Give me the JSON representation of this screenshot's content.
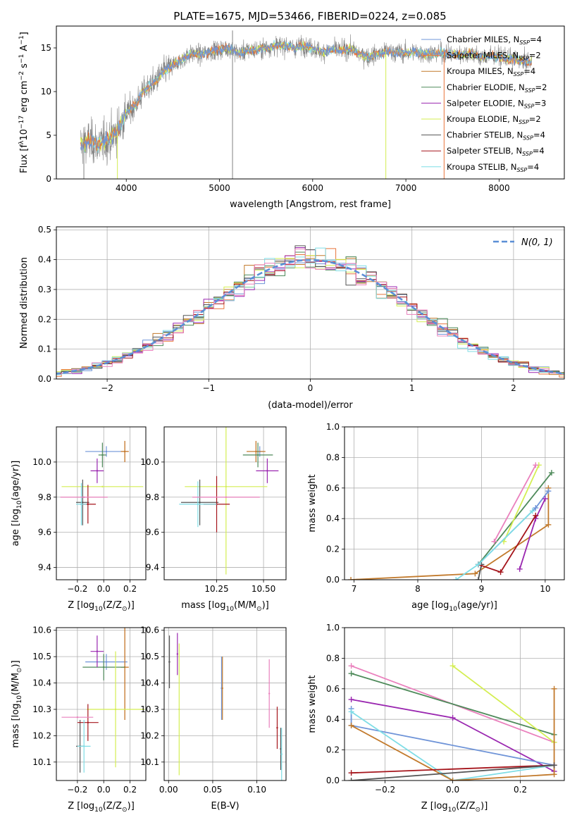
{
  "figure_title": "PLATE=1675, MJD=53466, FIBERID=0224, z=0.085",
  "colors": {
    "Chabrier MILES": "#6f94d8",
    "Salpeter MILES": "#e8743b",
    "Kroupa MILES": "#c27a2c",
    "Chabrier ELODIE": "#4e8a5a",
    "Salpeter ELODIE": "#9a27b0",
    "Kroupa ELODIE": "#d4ee52",
    "Chabrier STELIB": "#555555",
    "Salpeter STELIB": "#a5151c",
    "Kroupa STELIB": "#7fdde6",
    "Normal": "#5b8fd6",
    "Data": "#808080",
    "Extra": "#ea80bd"
  },
  "chart_data": [
    {
      "id": "spectrum",
      "type": "line",
      "title": "PLATE=1675, MJD=53466, FIBERID=0224, z=0.085",
      "xlabel": "wavelength [Angstrom, rest frame]",
      "ylabel_parts": [
        "Flux [f",
        "λ",
        "10",
        "−17",
        " erg cm",
        "−2",
        " s",
        "−1",
        " A",
        "−1",
        "]"
      ],
      "xlim": [
        3250,
        8700
      ],
      "ylim": [
        0,
        17.5
      ],
      "xticks": [
        4000,
        5000,
        6000,
        7000,
        8000
      ],
      "yticks": [
        0,
        5,
        10,
        15
      ],
      "grid": false,
      "legend_position": "right",
      "legend": [
        {
          "base": "Chabrier MILES, N",
          "sub": "SSP",
          "tail": "=4",
          "color": "Chabrier MILES"
        },
        {
          "base": "Salpeter MILES, N",
          "sub": "SSP",
          "tail": "=2",
          "color": "Salpeter MILES"
        },
        {
          "base": "Kroupa MILES, N",
          "sub": "SSP",
          "tail": "=4",
          "color": "Kroupa MILES"
        },
        {
          "base": "Chabrier ELODIE, N",
          "sub": "SSP",
          "tail": "=2",
          "color": "Chabrier ELODIE"
        },
        {
          "base": "Salpeter ELODIE, N",
          "sub": "SSP",
          "tail": "=3",
          "color": "Salpeter ELODIE"
        },
        {
          "base": "Kroupa ELODIE, N",
          "sub": "SSP",
          "tail": "=2",
          "color": "Kroupa ELODIE"
        },
        {
          "base": "Chabrier STELIB, N",
          "sub": "SSP",
          "tail": "=4",
          "color": "Chabrier STELIB"
        },
        {
          "base": "Salpeter STELIB, N",
          "sub": "SSP",
          "tail": "=4",
          "color": "Salpeter STELIB"
        },
        {
          "base": "Kroupa STELIB, N",
          "sub": "SSP",
          "tail": "=4",
          "color": "Kroupa STELIB"
        }
      ],
      "continuum": [
        [
          3510,
          4.0
        ],
        [
          3600,
          4.3
        ],
        [
          3700,
          4.0
        ],
        [
          3800,
          4.4
        ],
        [
          3900,
          5.5
        ],
        [
          4000,
          7.5
        ],
        [
          4100,
          8.5
        ],
        [
          4200,
          10.2
        ],
        [
          4300,
          11.0
        ],
        [
          4400,
          12.3
        ],
        [
          4500,
          13.0
        ],
        [
          4600,
          13.7
        ],
        [
          4700,
          14.3
        ],
        [
          4800,
          14.2
        ],
        [
          4900,
          14.6
        ],
        [
          5000,
          14.8
        ],
        [
          5100,
          15.0
        ],
        [
          5200,
          14.4
        ],
        [
          5300,
          14.7
        ],
        [
          5400,
          14.8
        ],
        [
          5500,
          15.0
        ],
        [
          5600,
          15.2
        ],
        [
          5700,
          15.3
        ],
        [
          5800,
          15.0
        ],
        [
          5900,
          15.3
        ],
        [
          6000,
          15.0
        ],
        [
          6100,
          14.5
        ],
        [
          6200,
          14.8
        ],
        [
          6300,
          14.7
        ],
        [
          6400,
          14.9
        ],
        [
          6500,
          14.3
        ],
        [
          6600,
          14.0
        ],
        [
          6700,
          14.3
        ],
        [
          6800,
          14.6
        ],
        [
          6900,
          14.5
        ],
        [
          7000,
          14.4
        ],
        [
          7100,
          14.6
        ],
        [
          7200,
          14.3
        ],
        [
          7300,
          14.4
        ],
        [
          7400,
          14.5
        ],
        [
          7500,
          14.2
        ],
        [
          7600,
          14.3
        ],
        [
          7700,
          14.4
        ],
        [
          7800,
          13.9
        ],
        [
          7900,
          14.1
        ],
        [
          8000,
          14.0
        ],
        [
          8100,
          13.8
        ],
        [
          8200,
          13.6
        ],
        [
          8300,
          13.4
        ],
        [
          8350,
          13.4
        ]
      ]
    },
    {
      "id": "residuals",
      "type": "line",
      "xlabel": "(data-model)/error",
      "ylabel": "Normed distribution",
      "xlim": [
        -2.5,
        2.5
      ],
      "ylim": [
        0,
        0.51
      ],
      "xticks": [
        -2,
        -1,
        0,
        1,
        2
      ],
      "xtick_labels": [
        "−2",
        "−1",
        "0",
        "1",
        "2"
      ],
      "yticks": [
        0,
        0.1,
        0.2,
        0.3,
        0.4,
        0.5
      ],
      "ytick_labels": [
        "0.0",
        "0.1",
        "0.2",
        "0.3",
        "0.4",
        "0.5"
      ],
      "grid": true,
      "legend_position": "top-right",
      "legend": "N(0, 1)",
      "bin_width": 0.1
    },
    {
      "id": "age-vs-Z",
      "type": "scatter",
      "xlabel_parts": [
        "Z [log",
        "10",
        "(Z/Z",
        "⊙",
        ")]"
      ],
      "ylabel_parts": [
        "age  [log",
        "10",
        "(age/yr)]"
      ],
      "xlim": [
        -0.36,
        0.32
      ],
      "ylim": [
        9.33,
        10.2
      ],
      "xticks": [
        -0.2,
        0.0,
        0.2
      ],
      "xtick_labels": [
        "−0.2",
        "0.0",
        "0.2"
      ],
      "yticks": [
        9.4,
        9.6,
        9.8,
        10.0
      ],
      "ytick_labels": [
        "9.4",
        "9.6",
        "9.8",
        "10.0"
      ],
      "grid": true,
      "points": [
        {
          "x": 0.02,
          "y": 10.06,
          "xerr": 0.16,
          "yerr": 0.03,
          "color": "Chabrier MILES"
        },
        {
          "x": 0.16,
          "y": 10.06,
          "xerr": 0.03,
          "yerr": 0.06,
          "color": "Salpeter MILES"
        },
        {
          "x": 0.16,
          "y": 10.06,
          "xerr": 0.03,
          "yerr": 0.06,
          "color": "Kroupa MILES"
        },
        {
          "x": -0.01,
          "y": 10.04,
          "xerr": 0.03,
          "yerr": 0.07,
          "color": "Chabrier ELODIE"
        },
        {
          "x": -0.05,
          "y": 9.95,
          "xerr": 0.05,
          "yerr": 0.07,
          "color": "Salpeter ELODIE"
        },
        {
          "x": -0.01,
          "y": 9.86,
          "xerr": 0.31,
          "yerr": 0.0,
          "color": "Kroupa ELODIE"
        },
        {
          "x": -0.16,
          "y": 9.77,
          "xerr": 0.05,
          "yerr": 0.13,
          "color": "Chabrier STELIB"
        },
        {
          "x": -0.12,
          "y": 9.76,
          "xerr": 0.06,
          "yerr": 0.11,
          "color": "Salpeter STELIB"
        },
        {
          "x": -0.17,
          "y": 9.76,
          "xerr": 0.04,
          "yerr": 0.12,
          "color": "Kroupa STELIB"
        },
        {
          "x": -0.15,
          "y": 9.8,
          "xerr": 0.18,
          "yerr": 0.0,
          "color": "Extra"
        }
      ]
    },
    {
      "id": "age-vs-mass",
      "type": "scatter",
      "xlabel_parts": [
        "mass [log",
        "10",
        "(M/M",
        "⊙",
        ")]"
      ],
      "ylabel_parts": [],
      "xlim": [
        9.97,
        10.62
      ],
      "ylim": [
        9.33,
        10.2
      ],
      "xticks": [
        10.25,
        10.5
      ],
      "xtick_labels": [
        "10.25",
        "10.50"
      ],
      "yticks": [
        9.4,
        9.6,
        9.8,
        10.0
      ],
      "ytick_labels": [
        "9.4",
        "9.6",
        "9.8",
        "10.0"
      ],
      "grid": true,
      "points": [
        {
          "x": 10.48,
          "y": 10.06,
          "xerr": 0.02,
          "yerr": 0.03,
          "color": "Chabrier MILES"
        },
        {
          "x": 10.46,
          "y": 10.06,
          "xerr": 0.05,
          "yerr": 0.06,
          "color": "Salpeter MILES"
        },
        {
          "x": 10.46,
          "y": 10.06,
          "xerr": 0.05,
          "yerr": 0.06,
          "color": "Kroupa MILES"
        },
        {
          "x": 10.47,
          "y": 10.04,
          "xerr": 0.08,
          "yerr": 0.07,
          "color": "Chabrier ELODIE"
        },
        {
          "x": 10.52,
          "y": 9.95,
          "xerr": 0.06,
          "yerr": 0.07,
          "color": "Salpeter ELODIE"
        },
        {
          "x": 10.3,
          "y": 9.86,
          "xerr": 0.22,
          "yerr": 0.5,
          "color": "Kroupa ELODIE"
        },
        {
          "x": 10.16,
          "y": 9.77,
          "xerr": 0.1,
          "yerr": 0.13,
          "color": "Chabrier STELIB"
        },
        {
          "x": 10.25,
          "y": 9.76,
          "xerr": 0.07,
          "yerr": 0.16,
          "color": "Salpeter STELIB"
        },
        {
          "x": 10.15,
          "y": 9.76,
          "xerr": 0.1,
          "yerr": 0.13,
          "color": "Kroupa STELIB"
        },
        {
          "x": 10.3,
          "y": 9.8,
          "xerr": 0.18,
          "yerr": 0.0,
          "color": "Extra"
        }
      ]
    },
    {
      "id": "mass-weight-vs-age",
      "type": "line",
      "xlabel_parts": [
        "age  [log",
        "10",
        "(age/yr)]"
      ],
      "ylabel": "mass weight",
      "xlim": [
        6.85,
        10.3
      ],
      "ylim": [
        0,
        1.0
      ],
      "xticks": [
        7,
        8,
        9,
        10
      ],
      "xtick_labels": [
        "7",
        "8",
        "9",
        "10"
      ],
      "yticks": [
        0.0,
        0.2,
        0.4,
        0.6,
        0.8,
        1.0
      ],
      "ytick_labels": [
        "0.0",
        "0.2",
        "0.4",
        "0.6",
        "0.8",
        "1.0"
      ],
      "grid": true,
      "series": [
        {
          "color": "Kroupa MILES",
          "x": [
            6.95,
            8.9,
            10.05,
            10.05
          ],
          "y": [
            0.0,
            0.04,
            0.36,
            0.6
          ]
        },
        {
          "color": "Chabrier MILES",
          "x": [
            8.95,
            9.85,
            10.05
          ],
          "y": [
            0.1,
            0.47,
            0.58
          ]
        },
        {
          "color": "Chabrier ELODIE",
          "x": [
            8.95,
            10.1
          ],
          "y": [
            0.1,
            0.7
          ]
        },
        {
          "color": "Salpeter ELODIE",
          "x": [
            9.6,
            9.85,
            10.0
          ],
          "y": [
            0.07,
            0.4,
            0.53
          ]
        },
        {
          "color": "Kroupa ELODIE",
          "x": [
            9.35,
            9.9
          ],
          "y": [
            0.25,
            0.75
          ]
        },
        {
          "color": "Extra",
          "x": [
            9.2,
            9.85
          ],
          "y": [
            0.25,
            0.75
          ]
        },
        {
          "color": "Chabrier STELIB",
          "x": [
            8.95,
            9.0
          ],
          "y": [
            0.0,
            0.1
          ]
        },
        {
          "color": "Salpeter STELIB",
          "x": [
            8.95,
            9.3,
            9.85
          ],
          "y": [
            0.1,
            0.05,
            0.42
          ]
        },
        {
          "color": "Kroupa STELIB",
          "x": [
            8.6,
            8.95,
            9.8
          ],
          "y": [
            0.0,
            0.1,
            0.45
          ]
        }
      ]
    },
    {
      "id": "mass-vs-Z",
      "type": "scatter",
      "xlabel_parts": [
        "Z [log",
        "10",
        "(Z/Z",
        "⊙",
        ")]"
      ],
      "ylabel_parts": [
        "mass [log",
        "10",
        "(M/M",
        "⊙",
        ")]"
      ],
      "xlim": [
        -0.36,
        0.32
      ],
      "ylim": [
        10.03,
        10.61
      ],
      "xticks": [
        -0.2,
        0.0,
        0.2
      ],
      "xtick_labels": [
        "−0.2",
        "0.0",
        "0.2"
      ],
      "yticks": [
        10.1,
        10.2,
        10.3,
        10.4,
        10.5,
        10.6
      ],
      "ytick_labels": [
        "10.1",
        "10.2",
        "10.3",
        "10.4",
        "10.5",
        "10.6"
      ],
      "grid": true,
      "points": [
        {
          "x": 0.02,
          "y": 10.48,
          "xerr": 0.16,
          "yerr": 0.03,
          "color": "Chabrier MILES"
        },
        {
          "x": 0.16,
          "y": 10.46,
          "xerr": 0.03,
          "yerr": 0.2,
          "color": "Salpeter MILES"
        },
        {
          "x": 0.16,
          "y": 10.46,
          "xerr": 0.03,
          "yerr": 0.2,
          "color": "Kroupa MILES"
        },
        {
          "x": 0.0,
          "y": 10.46,
          "xerr": 0.16,
          "yerr": 0.05,
          "color": "Chabrier ELODIE"
        },
        {
          "x": -0.05,
          "y": 10.52,
          "xerr": 0.05,
          "yerr": 0.06,
          "color": "Salpeter ELODIE"
        },
        {
          "x": 0.09,
          "y": 10.3,
          "xerr": 0.22,
          "yerr": 0.22,
          "color": "Kroupa ELODIE"
        },
        {
          "x": -0.18,
          "y": 10.16,
          "xerr": 0.03,
          "yerr": 0.1,
          "color": "Chabrier STELIB"
        },
        {
          "x": -0.12,
          "y": 10.25,
          "xerr": 0.08,
          "yerr": 0.07,
          "color": "Salpeter STELIB"
        },
        {
          "x": -0.15,
          "y": 10.16,
          "xerr": 0.05,
          "yerr": 0.1,
          "color": "Kroupa STELIB"
        },
        {
          "x": -0.2,
          "y": 10.27,
          "xerr": 0.12,
          "yerr": 0.0,
          "color": "Extra"
        }
      ]
    },
    {
      "id": "mass-vs-EBV",
      "type": "scatter",
      "xlabel": "E(B-V)",
      "ylabel_parts": [],
      "xlim": [
        -0.005,
        0.133
      ],
      "ylim": [
        10.03,
        10.61
      ],
      "xticks": [
        0.0,
        0.05,
        0.1
      ],
      "xtick_labels": [
        "0.00",
        "0.05",
        "0.10"
      ],
      "yticks": [
        10.1,
        10.2,
        10.3,
        10.4,
        10.5,
        10.6
      ],
      "ytick_labels": [
        "10.1",
        "10.2",
        "10.3",
        "10.4",
        "10.5",
        "10.6"
      ],
      "grid": true,
      "points": [
        {
          "x": 0.001,
          "y": 10.48,
          "xerr": 0,
          "yerr": 0.1,
          "color": "Chabrier STELIB"
        },
        {
          "x": 0.01,
          "y": 10.51,
          "xerr": 0,
          "yerr": 0.08,
          "color": "Salpeter ELODIE"
        },
        {
          "x": 0.012,
          "y": 10.3,
          "xerr": 0,
          "yerr": 0.25,
          "color": "Kroupa ELODIE"
        },
        {
          "x": 0.06,
          "y": 10.38,
          "xerr": 0,
          "yerr": 0.12,
          "color": "Chabrier MILES"
        },
        {
          "x": 0.061,
          "y": 10.38,
          "xerr": 0,
          "yerr": 0.12,
          "color": "Kroupa MILES"
        },
        {
          "x": 0.114,
          "y": 10.36,
          "xerr": 0,
          "yerr": 0.13,
          "color": "Extra"
        },
        {
          "x": 0.123,
          "y": 10.23,
          "xerr": 0,
          "yerr": 0.08,
          "color": "Salpeter STELIB"
        },
        {
          "x": 0.127,
          "y": 10.15,
          "xerr": 0,
          "yerr": 0.08,
          "color": "Chabrier STELIB"
        },
        {
          "x": 0.128,
          "y": 10.13,
          "xerr": 0,
          "yerr": 0.1,
          "color": "Kroupa STELIB"
        }
      ]
    },
    {
      "id": "mass-weight-vs-Z",
      "type": "line",
      "xlabel_parts": [
        "Z [log",
        "10",
        "(Z/Z",
        "⊙",
        ")]"
      ],
      "ylabel": "mass weight",
      "xlim": [
        -0.32,
        0.33
      ],
      "ylim": [
        0,
        1.0
      ],
      "xticks": [
        -0.2,
        0.0,
        0.2
      ],
      "xtick_labels": [
        "−0.2",
        "0.0",
        "0.2"
      ],
      "yticks": [
        0.0,
        0.2,
        0.4,
        0.6,
        0.8,
        1.0
      ],
      "ytick_labels": [
        "0.0",
        "0.2",
        "0.4",
        "0.6",
        "0.8",
        "1.0"
      ],
      "grid": true,
      "series": [
        {
          "color": "Extra",
          "x": [
            -0.3,
            0.3
          ],
          "y": [
            0.75,
            0.25
          ]
        },
        {
          "color": "Chabrier ELODIE",
          "x": [
            -0.3,
            0.3
          ],
          "y": [
            0.7,
            0.3
          ]
        },
        {
          "color": "Kroupa ELODIE",
          "x": [
            0.0,
            0.3
          ],
          "y": [
            0.75,
            0.25
          ]
        },
        {
          "color": "Salpeter ELODIE",
          "x": [
            -0.3,
            0.0,
            0.3
          ],
          "y": [
            0.53,
            0.41,
            0.06
          ]
        },
        {
          "color": "Chabrier MILES",
          "x": [
            -0.3,
            -0.3,
            0.3
          ],
          "y": [
            0.47,
            0.36,
            0.1
          ]
        },
        {
          "color": "Kroupa STELIB",
          "x": [
            -0.3,
            0.0,
            0.3
          ],
          "y": [
            0.45,
            0.0,
            0.1
          ]
        },
        {
          "color": "Kroupa MILES",
          "x": [
            -0.3,
            0.0,
            0.3,
            0.3
          ],
          "y": [
            0.36,
            0.0,
            0.04,
            0.6
          ]
        },
        {
          "color": "Salpeter STELIB",
          "x": [
            -0.3,
            0.3
          ],
          "y": [
            0.05,
            0.1
          ]
        },
        {
          "color": "Chabrier STELIB",
          "x": [
            -0.3,
            0.3
          ],
          "y": [
            0.0,
            0.1
          ]
        }
      ]
    }
  ]
}
